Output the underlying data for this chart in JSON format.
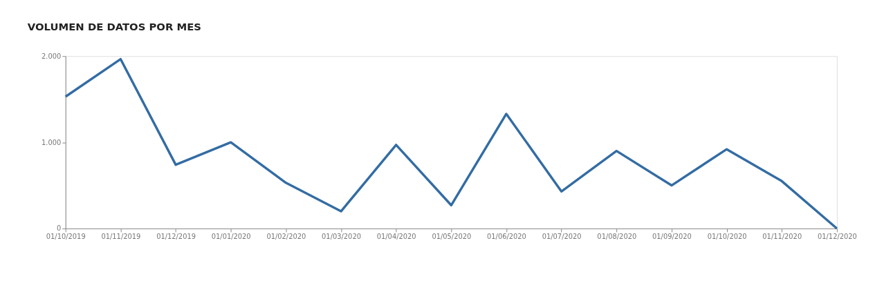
{
  "chart_data": {
    "type": "line",
    "title": "VOLUMEN DE DATOS POR MES",
    "categories": [
      "01/10/2019",
      "01/11/2019",
      "01/12/2019",
      "01/01/2020",
      "01/02/2020",
      "01/03/2020",
      "01/04/2020",
      "01/05/2020",
      "01/06/2020",
      "01/07/2020",
      "01/08/2020",
      "01/09/2020",
      "01/10/2020",
      "01/11/2020",
      "01/12/2020"
    ],
    "series": [
      {
        "color": "#336ca3",
        "values": [
          1530,
          1965,
          740,
          1000,
          530,
          200,
          970,
          270,
          1330,
          430,
          900,
          500,
          920,
          550,
          0
        ]
      }
    ],
    "ylim": [
      0,
      2000
    ],
    "yticks": [
      {
        "value": 0,
        "label": "0"
      },
      {
        "value": 1000,
        "label": "1.000"
      },
      {
        "value": 2000,
        "label": "2.000"
      }
    ],
    "grid": false,
    "legend": false,
    "marker": "none",
    "line_style": "solid"
  }
}
